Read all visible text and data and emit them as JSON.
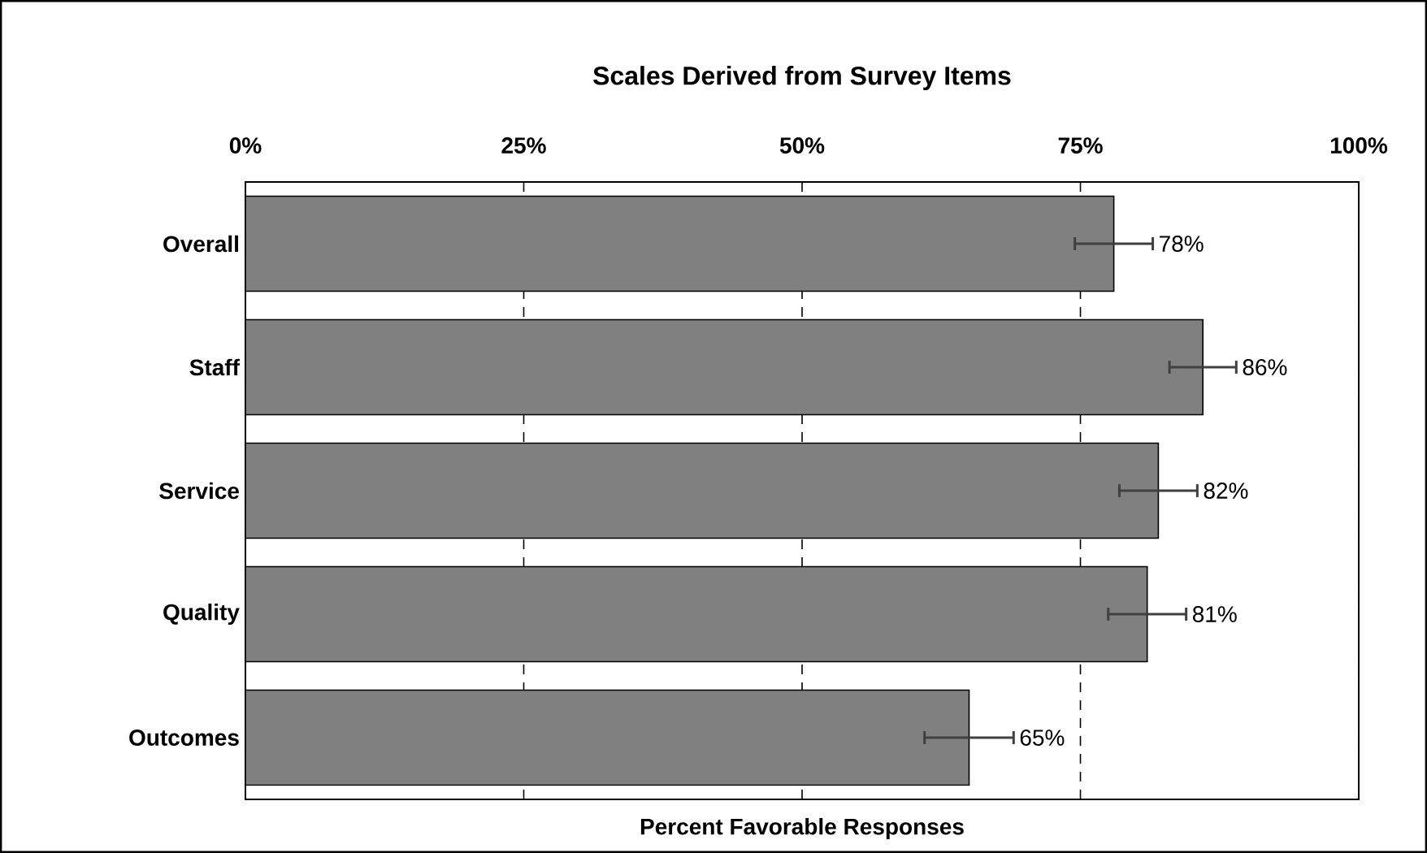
{
  "chart_data": {
    "type": "bar",
    "orientation": "horizontal",
    "title": "Scales Derived from Survey Items",
    "xlabel": "Percent Favorable Responses",
    "categories": [
      "Overall",
      "Staff",
      "Service",
      "Quality",
      "Outcomes"
    ],
    "values": [
      78,
      86,
      82,
      81,
      65
    ],
    "errors": [
      3.5,
      3,
      3.5,
      3.5,
      4
    ],
    "value_labels": [
      "78%",
      "86%",
      "82%",
      "81%",
      "65%"
    ],
    "color": "#808080",
    "xlim": [
      0,
      100
    ],
    "xticks": [
      {
        "value": 0,
        "label": "0%"
      },
      {
        "value": 25,
        "label": "25%"
      },
      {
        "value": 50,
        "label": "50%"
      },
      {
        "value": 75,
        "label": "75%"
      },
      {
        "value": 100,
        "label": "100%"
      }
    ],
    "grid": "x"
  }
}
